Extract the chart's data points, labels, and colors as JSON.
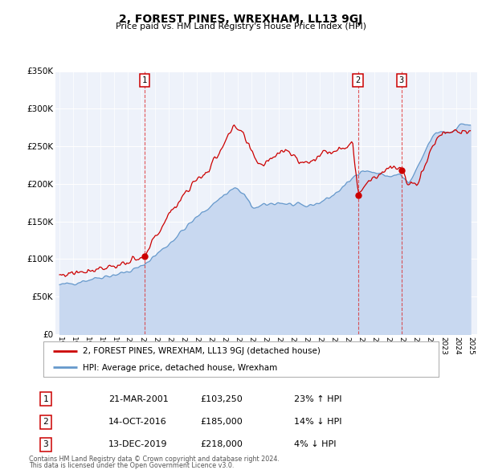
{
  "title": "2, FOREST PINES, WREXHAM, LL13 9GJ",
  "subtitle": "Price paid vs. HM Land Registry's House Price Index (HPI)",
  "legend_line1": "2, FOREST PINES, WREXHAM, LL13 9GJ (detached house)",
  "legend_line2": "HPI: Average price, detached house, Wrexham",
  "footer1": "Contains HM Land Registry data © Crown copyright and database right 2024.",
  "footer2": "This data is licensed under the Open Government Licence v3.0.",
  "sale_color": "#cc0000",
  "hpi_fill_color": "#c8d8f0",
  "hpi_line_color": "#6699cc",
  "background_color": "#eef2fa",
  "transactions": [
    {
      "num": 1,
      "date": "21-MAR-2001",
      "price": 103250,
      "pct": "23%",
      "dir": "↑",
      "x_year": 2001.22
    },
    {
      "num": 2,
      "date": "14-OCT-2016",
      "price": 185000,
      "pct": "14%",
      "dir": "↓",
      "x_year": 2016.79
    },
    {
      "num": 3,
      "date": "13-DEC-2019",
      "price": 218000,
      "pct": "4%",
      "dir": "↓",
      "x_year": 2019.96
    }
  ],
  "ylim": [
    0,
    350000
  ],
  "yticks": [
    0,
    50000,
    100000,
    150000,
    200000,
    250000,
    300000,
    350000
  ],
  "ytick_labels": [
    "£0",
    "£50K",
    "£100K",
    "£150K",
    "£200K",
    "£250K",
    "£300K",
    "£350K"
  ],
  "xlim_start": 1994.7,
  "xlim_end": 2025.5,
  "hpi_anchors_x": [
    1995.0,
    1996.0,
    1997.0,
    1998.0,
    1999.0,
    2000.0,
    2001.0,
    2002.0,
    2003.0,
    2004.0,
    2005.0,
    2006.0,
    2007.0,
    2007.8,
    2008.5,
    2009.0,
    2009.5,
    2010.0,
    2011.0,
    2012.0,
    2013.0,
    2014.0,
    2015.0,
    2016.0,
    2016.8,
    2017.0,
    2018.0,
    2019.0,
    2019.9,
    2020.5,
    2021.0,
    2021.5,
    2022.0,
    2022.5,
    2023.0,
    2023.5,
    2024.0,
    2024.5,
    2025.0
  ],
  "hpi_anchors_y": [
    65000,
    68000,
    72000,
    76000,
    79000,
    83000,
    90000,
    105000,
    120000,
    138000,
    155000,
    170000,
    185000,
    195000,
    185000,
    170000,
    168000,
    172000,
    175000,
    172000,
    170000,
    175000,
    185000,
    200000,
    215000,
    218000,
    215000,
    210000,
    212000,
    200000,
    215000,
    235000,
    255000,
    268000,
    270000,
    268000,
    275000,
    280000,
    278000
  ],
  "sale_anchors_x": [
    1995.0,
    1996.0,
    1997.0,
    1998.0,
    1999.0,
    2000.0,
    2001.0,
    2001.22,
    2002.0,
    2003.0,
    2004.0,
    2005.0,
    2006.0,
    2007.0,
    2007.8,
    2008.3,
    2008.8,
    2009.2,
    2009.8,
    2010.5,
    2011.0,
    2011.5,
    2012.0,
    2012.5,
    2013.0,
    2013.5,
    2014.0,
    2014.5,
    2015.0,
    2015.5,
    2016.0,
    2016.4,
    2016.79,
    2017.2,
    2017.8,
    2018.5,
    2019.0,
    2019.5,
    2019.96,
    2020.3,
    2020.8,
    2021.2,
    2021.7,
    2022.2,
    2022.6,
    2023.0,
    2023.5,
    2024.0,
    2024.5,
    2025.0
  ],
  "sale_anchors_y": [
    78000,
    82000,
    85000,
    88000,
    91000,
    95000,
    100000,
    103250,
    130000,
    158000,
    185000,
    205000,
    220000,
    255000,
    275000,
    268000,
    250000,
    235000,
    225000,
    235000,
    242000,
    248000,
    238000,
    230000,
    228000,
    232000,
    238000,
    242000,
    245000,
    248000,
    252000,
    255000,
    185000,
    198000,
    208000,
    215000,
    220000,
    222000,
    218000,
    205000,
    198000,
    205000,
    225000,
    248000,
    262000,
    268000,
    270000,
    272000,
    268000,
    265000
  ]
}
